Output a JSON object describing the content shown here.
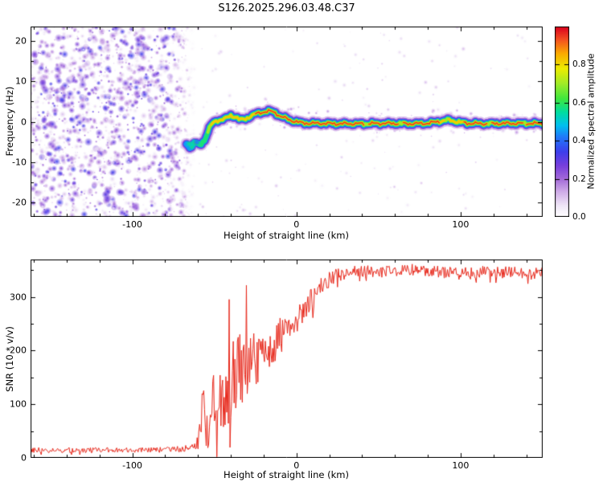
{
  "title": "S126.2025.296.03.48.C37",
  "chart_data": [
    {
      "type": "heatmap",
      "title": "",
      "xlabel": "Height of straight line (km)",
      "ylabel": "Frequency (Hz)",
      "xlim": [
        -162,
        150
      ],
      "ylim": [
        -23.5,
        23.5
      ],
      "xticks": [
        -100,
        0,
        100
      ],
      "yticks": [
        -20,
        -10,
        0,
        10,
        20
      ],
      "x_minor_step": 20,
      "y_minor_step": 5,
      "grid": false,
      "colorbar": {
        "label": "Normalized spectral amplitude",
        "ticks": [
          "0.0",
          "0.2",
          "0.4",
          "0.6",
          "0.8"
        ],
        "tick_values": [
          0,
          0.2,
          0.4,
          0.6,
          0.8
        ],
        "range": [
          0,
          1
        ],
        "colormap": "white-lavender-purple-blue-cyan-green-yellow-orange-red"
      },
      "noise_region": {
        "x_min": -162,
        "x_max": -64,
        "amplitude_range": [
          0.05,
          0.35
        ],
        "description": "broadband speckle noise across all frequencies before signal acquisition"
      },
      "trace": {
        "description": "narrowband signal track: [height_km, center_frequency_Hz, peak_normalized_amplitude]",
        "points": [
          [
            -67,
            -5.5,
            0.55
          ],
          [
            -64.5,
            -6.3,
            0.55
          ],
          [
            -62,
            -5.2,
            0.58
          ],
          [
            -59,
            -5.8,
            0.6
          ],
          [
            -56,
            -4.5,
            0.6
          ],
          [
            -54,
            -2.5,
            0.7
          ],
          [
            -52,
            -0.8,
            0.8
          ],
          [
            -49,
            0.2,
            0.85
          ],
          [
            -46,
            0.5,
            0.88
          ],
          [
            -43,
            0.8,
            0.9
          ],
          [
            -40,
            1.5,
            0.9
          ],
          [
            -37,
            1.2,
            0.92
          ],
          [
            -34,
            0.4,
            0.9
          ],
          [
            -31,
            0.7,
            0.92
          ],
          [
            -28,
            1.4,
            0.92
          ],
          [
            -25,
            1.9,
            0.93
          ],
          [
            -22,
            2.2,
            0.93
          ],
          [
            -19,
            2.5,
            0.95
          ],
          [
            -16,
            2.6,
            0.95
          ],
          [
            -13,
            2.2,
            0.95
          ],
          [
            -10,
            1.4,
            0.93
          ],
          [
            -7,
            0.9,
            0.93
          ],
          [
            -4,
            0.4,
            0.94
          ],
          [
            -1,
            0.1,
            0.95
          ],
          [
            3,
            -0.3,
            0.95
          ],
          [
            8,
            -0.4,
            0.96
          ],
          [
            15,
            -0.4,
            0.96
          ],
          [
            25,
            -0.5,
            0.96
          ],
          [
            40,
            -0.5,
            0.96
          ],
          [
            55,
            -0.4,
            0.96
          ],
          [
            70,
            -0.5,
            0.95
          ],
          [
            80,
            -0.4,
            0.95
          ],
          [
            87,
            0.1,
            0.93
          ],
          [
            93,
            0.4,
            0.9
          ],
          [
            99,
            -0.1,
            0.92
          ],
          [
            105,
            -0.4,
            0.94
          ],
          [
            115,
            -0.5,
            0.95
          ],
          [
            130,
            -0.4,
            0.96
          ],
          [
            150,
            -0.45,
            0.96
          ]
        ],
        "core_gaps_km": [
          [
            41,
            43.5
          ],
          [
            62,
            65
          ],
          [
            90,
            93
          ],
          [
            116,
            119
          ],
          [
            138,
            140
          ]
        ]
      }
    },
    {
      "type": "line",
      "title": "",
      "xlabel": "Height of straight line (km)",
      "ylabel": "SNR (10 * v/v)",
      "xlim": [
        -162,
        150
      ],
      "ylim": [
        0,
        370
      ],
      "xticks": [
        -100,
        0,
        100
      ],
      "yticks": [
        0,
        100,
        200,
        300
      ],
      "x_minor_step": 20,
      "y_minor_step": 50,
      "grid": false,
      "series": [
        {
          "name": "SNR",
          "color": "#e8291c",
          "envelope_description": "noisy signal summarized as [height_km, mean_SNR, spread]",
          "envelope": [
            [
              -162,
              14,
              10
            ],
            [
              -120,
              14,
              10
            ],
            [
              -90,
              14,
              10
            ],
            [
              -75,
              15,
              11
            ],
            [
              -68,
              16,
              12
            ],
            [
              -63,
              22,
              20
            ],
            [
              -60,
              35,
              45
            ],
            [
              -57,
              70,
              120
            ],
            [
              -55,
              55,
              80
            ],
            [
              -53,
              65,
              110
            ],
            [
              -51,
              90,
              140
            ],
            [
              -49,
              70,
              90
            ],
            [
              -47,
              95,
              130
            ],
            [
              -45,
              110,
              140
            ],
            [
              -43,
              100,
              110
            ],
            [
              -41,
              120,
              130
            ],
            [
              -39,
              150,
              150
            ],
            [
              -37,
              140,
              120
            ],
            [
              -35,
              160,
              140
            ],
            [
              -33,
              150,
              110
            ],
            [
              -31,
              170,
              120
            ],
            [
              -29,
              160,
              100
            ],
            [
              -27,
              175,
              110
            ],
            [
              -25,
              180,
              95
            ],
            [
              -23,
              175,
              90
            ],
            [
              -21,
              190,
              85
            ],
            [
              -19,
              195,
              85
            ],
            [
              -17,
              200,
              80
            ],
            [
              -15,
              205,
              80
            ],
            [
              -13,
              210,
              75
            ],
            [
              -11,
              220,
              70
            ],
            [
              -9,
              228,
              70
            ],
            [
              -7,
              235,
              65
            ],
            [
              -5,
              242,
              60
            ],
            [
              -3,
              250,
              58
            ],
            [
              -1,
              255,
              55
            ],
            [
              2,
              265,
              52
            ],
            [
              5,
              275,
              50
            ],
            [
              8,
              288,
              46
            ],
            [
              11,
              300,
              42
            ],
            [
              14,
              312,
              38
            ],
            [
              17,
              322,
              34
            ],
            [
              20,
              330,
              30
            ],
            [
              24,
              338,
              26
            ],
            [
              28,
              342,
              24
            ],
            [
              34,
              346,
              22
            ],
            [
              42,
              348,
              22
            ],
            [
              52,
              346,
              22
            ],
            [
              62,
              348,
              22
            ],
            [
              72,
              350,
              22
            ],
            [
              82,
              348,
              22
            ],
            [
              92,
              344,
              24
            ],
            [
              102,
              342,
              24
            ],
            [
              112,
              346,
              22
            ],
            [
              122,
              344,
              22
            ],
            [
              132,
              346,
              22
            ],
            [
              142,
              342,
              22
            ],
            [
              150,
              344,
              22
            ]
          ]
        }
      ]
    }
  ]
}
